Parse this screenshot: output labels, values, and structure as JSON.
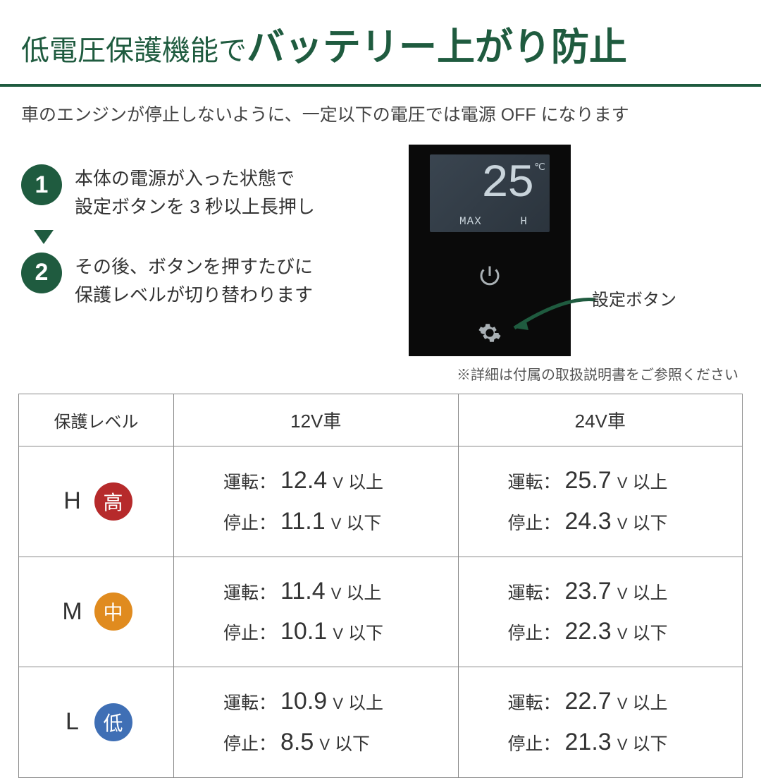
{
  "colors": {
    "brand": "#1f5b3f",
    "high": "#b62a2b",
    "mid": "#e08b1f",
    "low": "#3f6fb5",
    "device_bg": "#0a0a0a",
    "lcd_text": "#c9d4db"
  },
  "title": {
    "small": "低電圧保護機能で",
    "large": "バッテリー上がり防止"
  },
  "subtitle": "車のエンジンが停止しないように、一定以下の電圧では電源 OFF になります",
  "steps": [
    {
      "num": "1",
      "text": "本体の電源が入った状態で\n設定ボタンを 3 秒以上長押し"
    },
    {
      "num": "2",
      "text": "その後、ボタンを押すたびに\n保護レベルが切り替わります"
    }
  ],
  "device": {
    "temp": "25",
    "unit": "℃",
    "max": "MAX",
    "h": "H"
  },
  "pointer_label": "設定ボタン",
  "note": "※詳細は付属の取扱説明書をご参照ください",
  "table": {
    "headers": [
      "保護レベル",
      "12V車",
      "24V車"
    ],
    "run_label": "運転：",
    "stop_label": "停止：",
    "run_suffix": "以上",
    "stop_suffix": "以下",
    "v_unit": "V",
    "rows": [
      {
        "letter": "H",
        "badge": "高",
        "badge_color": "#b62a2b",
        "v12": {
          "run": "12.4",
          "stop": "11.1"
        },
        "v24": {
          "run": "25.7",
          "stop": "24.3"
        }
      },
      {
        "letter": "M",
        "badge": "中",
        "badge_color": "#e08b1f",
        "v12": {
          "run": "11.4",
          "stop": "10.1"
        },
        "v24": {
          "run": "23.7",
          "stop": "22.3"
        }
      },
      {
        "letter": "L",
        "badge": "低",
        "badge_color": "#3f6fb5",
        "v12": {
          "run": "10.9",
          "stop": "8.5"
        },
        "v24": {
          "run": "22.7",
          "stop": "21.3"
        }
      }
    ]
  }
}
